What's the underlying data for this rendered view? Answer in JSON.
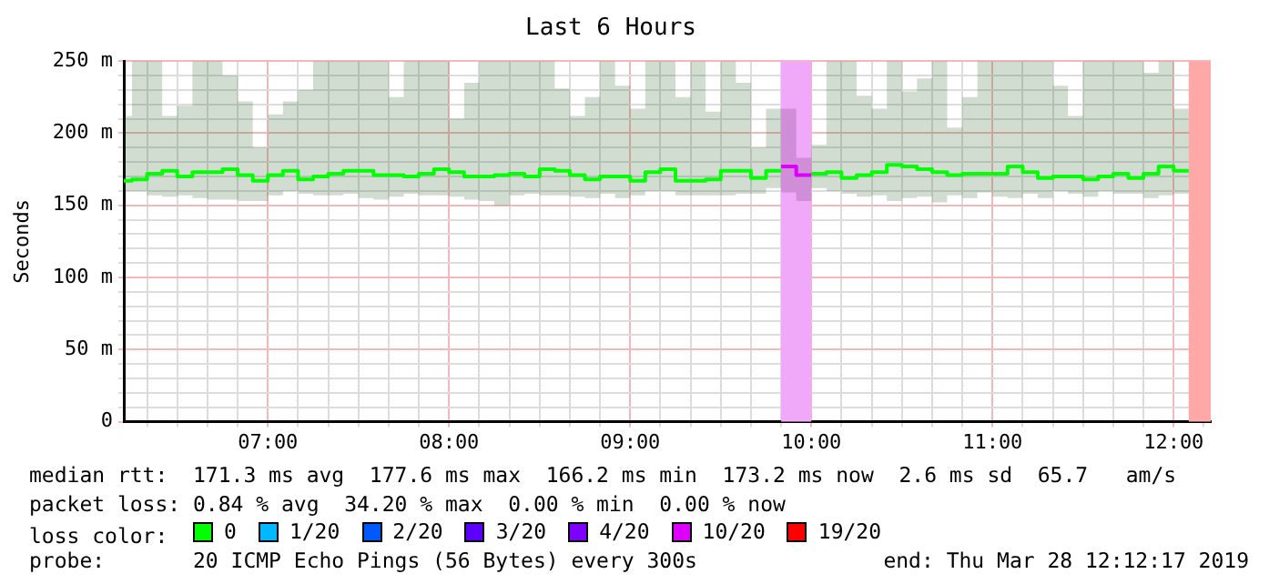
{
  "chart_data": {
    "type": "step",
    "title": "Last 6 Hours",
    "ylabel": "Seconds",
    "legend_title": "loss color:",
    "legend": "bottom",
    "grid": true,
    "xlim": [
      6.2047,
      12.2047
    ],
    "ylim": [
      0,
      250
    ],
    "xticks": [
      {
        "value": 6.3333,
        "label": null
      },
      {
        "value": 6.5,
        "label": null
      },
      {
        "value": 6.6667,
        "label": null
      },
      {
        "value": 6.8333,
        "label": null
      },
      {
        "value": 7,
        "label": "07:00"
      },
      {
        "value": 7.1667,
        "label": null
      },
      {
        "value": 7.3333,
        "label": null
      },
      {
        "value": 7.5,
        "label": null
      },
      {
        "value": 7.6667,
        "label": null
      },
      {
        "value": 7.8333,
        "label": null
      },
      {
        "value": 8,
        "label": "08:00"
      },
      {
        "value": 8.1667,
        "label": null
      },
      {
        "value": 8.3333,
        "label": null
      },
      {
        "value": 8.5,
        "label": null
      },
      {
        "value": 8.6667,
        "label": null
      },
      {
        "value": 8.8333,
        "label": null
      },
      {
        "value": 9,
        "label": "09:00"
      },
      {
        "value": 9.1667,
        "label": null
      },
      {
        "value": 9.3333,
        "label": null
      },
      {
        "value": 9.5,
        "label": null
      },
      {
        "value": 9.6667,
        "label": null
      },
      {
        "value": 9.8333,
        "label": null
      },
      {
        "value": 10,
        "label": "10:00"
      },
      {
        "value": 10.1667,
        "label": null
      },
      {
        "value": 10.3333,
        "label": null
      },
      {
        "value": 10.5,
        "label": null
      },
      {
        "value": 10.6667,
        "label": null
      },
      {
        "value": 10.8333,
        "label": null
      },
      {
        "value": 11,
        "label": "11:00"
      },
      {
        "value": 11.1667,
        "label": null
      },
      {
        "value": 11.3333,
        "label": null
      },
      {
        "value": 11.5,
        "label": null
      },
      {
        "value": 11.6667,
        "label": null
      },
      {
        "value": 11.8333,
        "label": null
      },
      {
        "value": 12,
        "label": "12:00"
      },
      {
        "value": 12.1667,
        "label": null
      }
    ],
    "yticks": [
      0,
      {
        "value": 10,
        "label": null
      },
      {
        "value": 20,
        "label": null
      },
      {
        "value": 30,
        "label": null
      },
      {
        "value": 40,
        "label": null
      },
      {
        "value": 50,
        "label": "50 m"
      },
      {
        "value": 60,
        "label": null
      },
      {
        "value": 70,
        "label": null
      },
      {
        "value": 80,
        "label": null
      },
      {
        "value": 90,
        "label": null
      },
      {
        "value": 100,
        "label": "100 m"
      },
      {
        "value": 110,
        "label": null
      },
      {
        "value": 120,
        "label": null
      },
      {
        "value": 130,
        "label": null
      },
      {
        "value": 140,
        "label": null
      },
      {
        "value": 150,
        "label": "150 m"
      },
      {
        "value": 160,
        "label": null
      },
      {
        "value": 170,
        "label": null
      },
      {
        "value": 180,
        "label": null
      },
      {
        "value": 190,
        "label": null
      },
      {
        "value": 200,
        "label": "200 m"
      },
      {
        "value": 210,
        "label": null
      },
      {
        "value": 220,
        "label": null
      },
      {
        "value": 230,
        "label": null
      },
      {
        "value": 240,
        "label": null
      },
      {
        "value": 250,
        "label": "250 m"
      }
    ],
    "bands": [
      {
        "axis": "x",
        "from": 9.8333,
        "to": 10,
        "color": "#f0a8f8"
      },
      {
        "axis": "x",
        "from": 12.0833,
        "to": 12.2047,
        "color": "#ffa8a8"
      }
    ],
    "series": [
      {
        "name": "0",
        "color": "#00ff00",
        "x": [
          6.2047,
          6.25,
          6.3333,
          6.4167,
          6.5,
          6.5833,
          6.6667,
          6.75,
          6.8333,
          6.9167,
          7,
          7.0833,
          7.1667,
          7.25,
          7.3333,
          7.4167,
          7.5,
          7.5833,
          7.6667,
          7.75,
          7.8333,
          7.9167,
          8,
          8.0833,
          8.1667,
          8.25,
          8.3333,
          8.4167,
          8.5,
          8.5833,
          8.6667,
          8.75,
          8.8333,
          8.9167,
          9,
          9.0833,
          9.1667,
          9.25,
          9.3333,
          9.4167,
          9.5,
          9.5833,
          9.6667,
          9.75,
          9.8333,
          9.9167,
          10,
          10.0833,
          10.1667,
          10.25,
          10.3333,
          10.4167,
          10.5,
          10.5833,
          10.6667,
          10.75,
          10.8333,
          10.9167,
          11,
          11.0833,
          11.1667,
          11.25,
          11.3333,
          11.4167,
          11.5,
          11.5833,
          11.6667,
          11.75,
          11.8333,
          11.9167,
          12,
          12.0833
        ],
        "values": [
          167,
          168,
          172,
          174,
          170,
          173,
          173,
          175,
          171,
          167,
          171,
          174,
          168,
          170,
          172,
          174,
          174,
          171,
          171,
          170,
          172,
          175,
          173,
          170,
          170,
          171,
          172,
          170,
          175,
          174,
          171,
          168,
          170,
          170,
          167,
          173,
          175,
          167,
          167,
          168,
          174,
          174,
          169,
          174,
          null,
          null,
          172,
          173,
          169,
          171,
          173,
          178,
          177,
          175,
          173,
          171,
          172,
          172,
          172,
          177,
          173,
          169,
          170,
          170,
          168,
          170,
          172,
          169,
          172,
          177,
          174,
          174
        ],
        "upper": [
          212,
          250,
          250,
          212,
          219,
          250,
          250,
          240,
          222,
          190,
          213,
          222,
          230,
          250,
          250,
          250,
          250,
          250,
          225,
          250,
          250,
          250,
          210,
          235,
          250,
          250,
          250,
          250,
          250,
          231,
          212,
          225,
          250,
          233,
          217,
          250,
          250,
          225,
          250,
          215,
          250,
          235,
          190,
          217,
          null,
          null,
          192,
          250,
          250,
          226,
          217,
          250,
          229,
          238,
          250,
          204,
          225,
          250,
          250,
          250,
          250,
          250,
          233,
          212,
          250,
          250,
          250,
          250,
          242,
          250,
          217,
          217
        ],
        "lower": [
          160,
          160,
          157,
          156,
          157,
          155,
          154,
          154,
          153,
          153,
          157,
          160,
          158,
          157,
          157,
          158,
          155,
          154,
          156,
          158,
          157,
          157,
          156,
          154,
          153,
          150,
          157,
          158,
          157,
          157,
          156,
          155,
          158,
          155,
          157,
          160,
          160,
          157,
          157,
          157,
          157,
          158,
          158,
          162,
          null,
          null,
          162,
          160,
          158,
          156,
          157,
          153,
          155,
          156,
          152,
          157,
          155,
          159,
          156,
          155,
          158,
          155,
          160,
          158,
          156,
          160,
          158,
          158,
          155,
          157,
          158,
          158
        ]
      },
      {
        "name": "1/20",
        "color": "#00b8ff"
      },
      {
        "name": "2/20",
        "color": "#0059ff"
      },
      {
        "name": "3/20",
        "color": "#5e00ff"
      },
      {
        "name": "4/20",
        "color": "#7e00ff"
      },
      {
        "name": "10/20",
        "color": "#dd00ff",
        "x": [
          9.8333,
          9.9167,
          10
        ],
        "values": [
          177,
          171,
          171
        ],
        "upper": [
          217,
          183,
          183
        ],
        "lower": [
          159,
          153,
          153
        ]
      },
      {
        "name": "19/20",
        "color": "#ff0000"
      }
    ],
    "annotations": [
      "median rtt:  171.3 ms avg  177.6 ms max  166.2 ms min  173.2 ms now  2.6 ms sd  65.7   am/s",
      "packet loss: 0.84 % avg  34.20 % max  0.00 % min  0.00 % now",
      "probe:       20 ICMP Echo Pings (56 Bytes) every 300s",
      "end: Thu Mar 28 12:12:17 2019"
    ]
  }
}
